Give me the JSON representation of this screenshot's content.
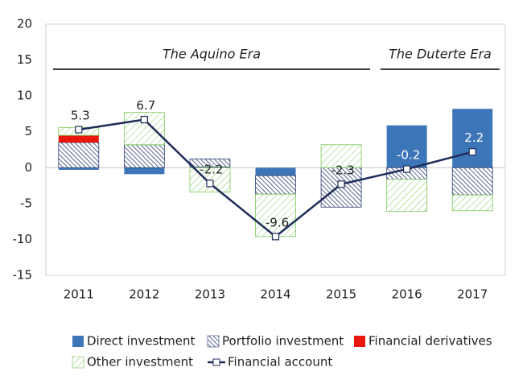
{
  "chart_data": {
    "type": "bar",
    "categories": [
      "2011",
      "2012",
      "2013",
      "2014",
      "2015",
      "2016",
      "2017"
    ],
    "series": [
      {
        "name": "Direct investment",
        "color": "#3d76b8",
        "fill": "solid",
        "values": [
          -0.3,
          -0.9,
          0.1,
          -1.1,
          0,
          5.9,
          8.2
        ]
      },
      {
        "name": "Portfolio investment",
        "color": "#2e3f74",
        "fill": "hatch",
        "values": [
          3.5,
          3.2,
          1.1,
          -2.6,
          -5.5,
          -1.6,
          -3.8
        ]
      },
      {
        "name": "Financial derivatives",
        "color": "#e8180f",
        "fill": "solid",
        "values": [
          1.0,
          0,
          0,
          0,
          0,
          0,
          0
        ]
      },
      {
        "name": "Other investment",
        "color": "#7cc95a",
        "fill": "hatch",
        "values": [
          1.1,
          4.5,
          -3.4,
          -5.9,
          3.2,
          -4.5,
          -2.2
        ]
      }
    ],
    "line": {
      "name": "Financial account",
      "color": "#1f2d5a",
      "values": [
        5.3,
        6.7,
        -2.2,
        -9.6,
        -2.3,
        -0.2,
        2.2
      ]
    },
    "annotations": [
      "The Aquino Era",
      "The Duterte Era"
    ],
    "ylim": [
      -15,
      20
    ],
    "yticks": [
      -15,
      -10,
      -5,
      0,
      5,
      10,
      15,
      20
    ]
  }
}
